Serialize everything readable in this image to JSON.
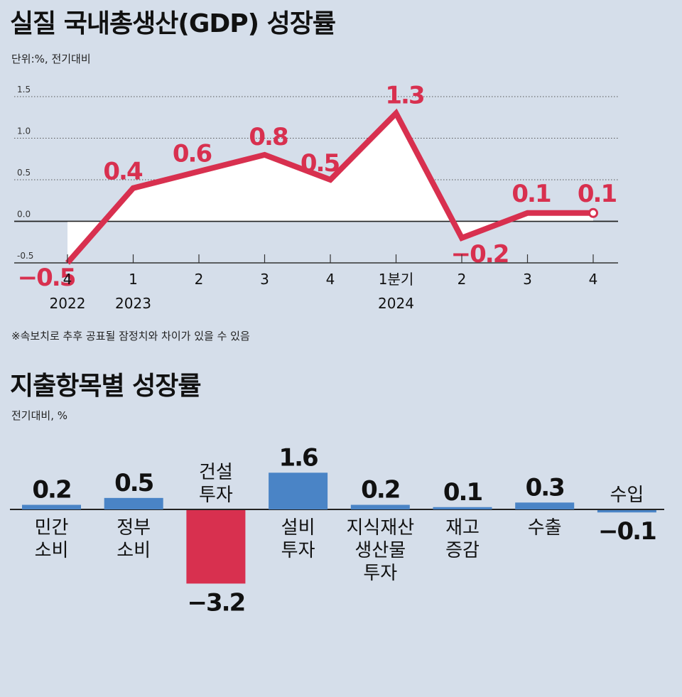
{
  "line_chart": {
    "title": "실질 국내총생산(GDP) 성장률",
    "unit_note": "단위:%, 전기대비",
    "footnote": "※속보치로 추후 공표될 잠정치와 차이가 있을 수 있음"
  },
  "bar_chart": {
    "title": "지출항목별 성장률",
    "unit_note": "전기대비, %"
  },
  "colors": {
    "background": "#d5deea",
    "line": "#d8304f",
    "bar_positive": "#4a84c6",
    "bar_negative": "#d8304f"
  },
  "chart_data": [
    {
      "type": "line",
      "title": "실질 국내총생산(GDP) 성장률",
      "ylim": [
        -0.5,
        1.5
      ],
      "y_ticks": [
        "1.5",
        "1.0",
        "0.5",
        "0.0",
        "-0.5"
      ],
      "x_labels": [
        "4",
        "1",
        "2",
        "3",
        "4",
        "1분기",
        "2",
        "3",
        "4"
      ],
      "year_labels": [
        {
          "label": "2022",
          "index": 0
        },
        {
          "label": "2023",
          "index": 1
        },
        {
          "label": "2024",
          "index": 5
        }
      ],
      "values": [
        -0.5,
        0.4,
        0.6,
        0.8,
        0.5,
        1.3,
        -0.2,
        0.1,
        0.1
      ],
      "value_labels": [
        "−0.5",
        "0.4",
        "0.6",
        "0.8",
        "0.5",
        "1.3",
        "−0.2",
        "0.1",
        "0.1"
      ],
      "grid": true
    },
    {
      "type": "bar",
      "title": "지출항목별 성장률",
      "categories": [
        [
          "민간",
          "소비"
        ],
        [
          "정부",
          "소비"
        ],
        [
          "건설",
          "투자"
        ],
        [
          "설비",
          "투자"
        ],
        [
          "지식재산",
          "생산물",
          "투자"
        ],
        [
          "재고",
          "증감"
        ],
        [
          "수출"
        ],
        [
          "수입"
        ]
      ],
      "values": [
        0.2,
        0.5,
        -3.2,
        1.6,
        0.2,
        0.1,
        0.3,
        -0.1
      ],
      "value_labels": [
        "0.2",
        "0.5",
        "−3.2",
        "1.6",
        "0.2",
        "0.1",
        "0.3",
        "−0.1"
      ]
    }
  ]
}
